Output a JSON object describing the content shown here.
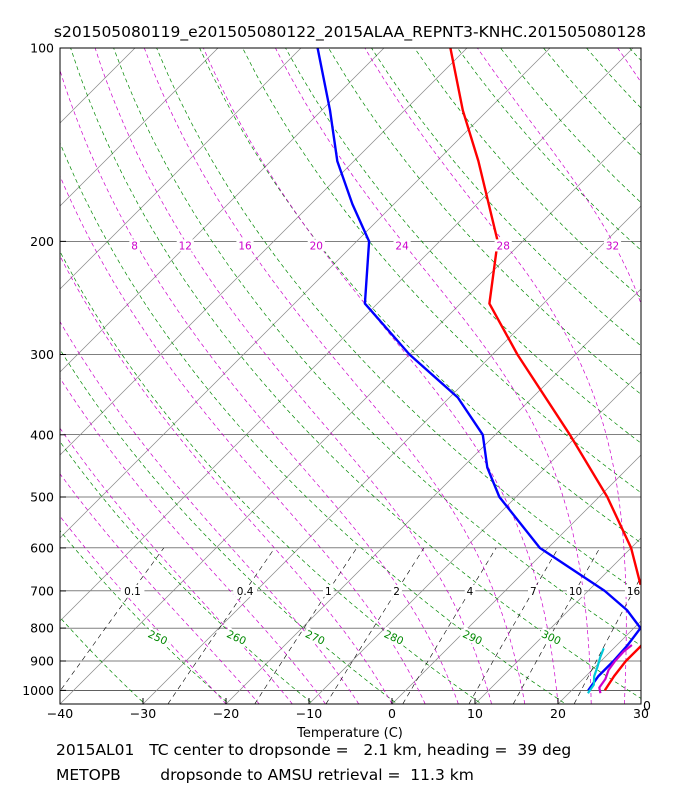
{
  "chart_data": {
    "type": "line",
    "title": "s201505080119_e201505080122_2015ALAA_REPNT3-KNHC.201505080128",
    "xlabel": "Temperature (C)",
    "ylabel": "",
    "x_range": [
      -40,
      30
    ],
    "y_range_hpa": [
      1050,
      100
    ],
    "y_scale": "log",
    "x_ticks": [
      "−40",
      "−30",
      "−20",
      "−10",
      "0",
      "10",
      "20",
      "30"
    ],
    "x_tick_values": [
      -40,
      -30,
      -20,
      -10,
      0,
      10,
      20,
      30
    ],
    "pressure_ticks": [
      100,
      200,
      300,
      400,
      500,
      600,
      700,
      800,
      900,
      1000
    ],
    "skew_deg": 45,
    "grid": true,
    "mixing_ratio_labels": [
      {
        "text": "0.1",
        "value": 0.1
      },
      {
        "text": "0.4",
        "value": 0.4
      },
      {
        "text": "1",
        "value": 1
      },
      {
        "text": "2",
        "value": 2
      },
      {
        "text": "4",
        "value": 4
      },
      {
        "text": "7",
        "value": 7
      },
      {
        "text": "10",
        "value": 10
      },
      {
        "text": "16",
        "value": 16
      }
    ],
    "dry_adiabat_labels": [
      "250",
      "260",
      "270",
      "280",
      "290",
      "300"
    ],
    "moist_adiabat_labels": [
      "8",
      "12",
      "16",
      "20",
      "24",
      "28",
      "32"
    ],
    "corner_label": "0",
    "colors": {
      "temperature": "#ff0000",
      "dewpoint": "#0000ff",
      "dropsonde_temperature": "#cc00cc",
      "dropsonde_dewpoint": "#00c8d8",
      "dry_adiabat": "#008800",
      "moist_adiabat": "#cc00cc",
      "isotherm": "#888888",
      "mixing_ratio": "#000000"
    },
    "series": [
      {
        "key": "temperature",
        "values": [
          {
            "p": 1000,
            "t": 24.0
          },
          {
            "p": 950,
            "t": 23.4
          },
          {
            "p": 900,
            "t": 23.0
          },
          {
            "p": 850,
            "t": 23.0
          },
          {
            "p": 800,
            "t": 22.2
          },
          {
            "p": 750,
            "t": 19.5
          },
          {
            "p": 700,
            "t": 16.5
          },
          {
            "p": 600,
            "t": 10.0
          },
          {
            "p": 500,
            "t": 1.0
          },
          {
            "p": 400,
            "t": -11.0
          },
          {
            "p": 300,
            "t": -27.0
          },
          {
            "p": 250,
            "t": -36.5
          },
          {
            "p": 200,
            "t": -43.0
          },
          {
            "p": 150,
            "t": -55.0
          },
          {
            "p": 125,
            "t": -63.0
          },
          {
            "p": 100,
            "t": -72.0
          }
        ]
      },
      {
        "key": "dewpoint",
        "values": [
          {
            "p": 1000,
            "t": 22.0
          },
          {
            "p": 950,
            "t": 21.5
          },
          {
            "p": 900,
            "t": 21.5
          },
          {
            "p": 850,
            "t": 21.3
          },
          {
            "p": 800,
            "t": 20.8
          },
          {
            "p": 750,
            "t": 17.0
          },
          {
            "p": 700,
            "t": 12.0
          },
          {
            "p": 600,
            "t": -1.0
          },
          {
            "p": 500,
            "t": -12.0
          },
          {
            "p": 450,
            "t": -17.0
          },
          {
            "p": 400,
            "t": -21.5
          },
          {
            "p": 350,
            "t": -29.0
          },
          {
            "p": 300,
            "t": -40.0
          },
          {
            "p": 250,
            "t": -51.5
          },
          {
            "p": 200,
            "t": -58.5
          },
          {
            "p": 175,
            "t": -65.0
          },
          {
            "p": 150,
            "t": -72.0
          },
          {
            "p": 125,
            "t": -79.0
          },
          {
            "p": 100,
            "t": -88.0
          }
        ]
      },
      {
        "key": "dropsonde_temperature",
        "values": [
          {
            "p": 1010,
            "t": 23.8
          },
          {
            "p": 990,
            "t": 23.0
          },
          {
            "p": 960,
            "t": 22.7
          },
          {
            "p": 930,
            "t": 22.0
          },
          {
            "p": 900,
            "t": 21.7
          },
          {
            "p": 870,
            "t": 21.6
          },
          {
            "p": 850,
            "t": 21.8
          }
        ]
      },
      {
        "key": "dropsonde_dewpoint",
        "values": [
          {
            "p": 1010,
            "t": 22.3
          },
          {
            "p": 980,
            "t": 22.0
          },
          {
            "p": 950,
            "t": 21.0
          },
          {
            "p": 920,
            "t": 20.3
          },
          {
            "p": 890,
            "t": 19.5
          },
          {
            "p": 860,
            "t": 18.8
          }
        ]
      }
    ]
  },
  "footer": {
    "line1": "2015AL01   TC center to dropsonde =   2.1 km, heading =  39 deg",
    "line2": "METOPB        dropsonde to AMSU retrieval =  11.3 km"
  }
}
